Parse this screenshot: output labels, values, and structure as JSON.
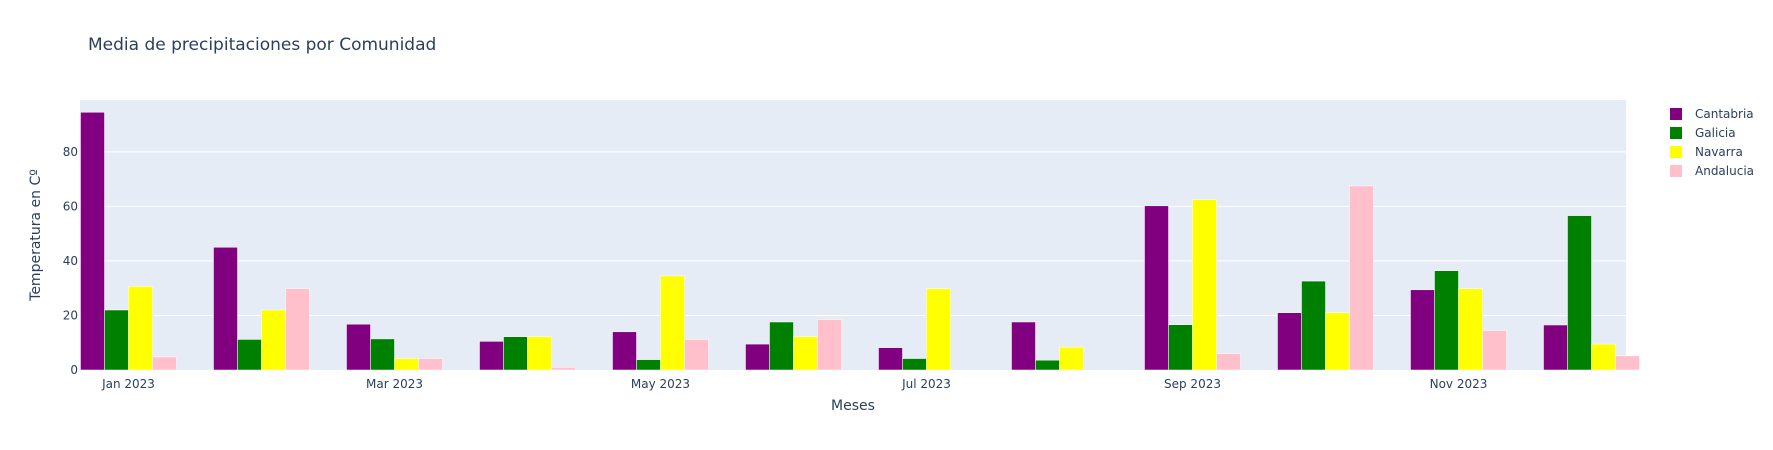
{
  "chart_data": {
    "type": "bar",
    "title": "Media de precipitaciones por Comunidad",
    "xlabel": "Meses",
    "ylabel": "Temperatura en Cº",
    "ylim": [
      0,
      99
    ],
    "yticks": [
      0,
      20,
      40,
      60,
      80
    ],
    "x_tick_labels": [
      {
        "month_index": 0,
        "label": "Jan 2023"
      },
      {
        "month_index": 2,
        "label": "Mar 2023"
      },
      {
        "month_index": 4,
        "label": "May 2023"
      },
      {
        "month_index": 6,
        "label": "Jul 2023"
      },
      {
        "month_index": 8,
        "label": "Sep 2023"
      },
      {
        "month_index": 10,
        "label": "Nov 2023"
      }
    ],
    "categories": [
      "2023-01",
      "2023-02",
      "2023-03",
      "2023-04",
      "2023-05",
      "2023-06",
      "2023-07",
      "2023-08",
      "2023-09",
      "2023-10",
      "2023-11",
      "2023-12"
    ],
    "series": [
      {
        "name": "Cantabria",
        "color": "#800080",
        "values": [
          94.5,
          45,
          16.8,
          10.5,
          14,
          9.5,
          8.2,
          17.6,
          60.2,
          21,
          29.4,
          16.5
        ]
      },
      {
        "name": "Galicia",
        "color": "#008000",
        "values": [
          22,
          11.2,
          11.4,
          12.2,
          3.8,
          17.6,
          4.2,
          3.6,
          16.6,
          32.6,
          36.4,
          56.6
        ]
      },
      {
        "name": "Navarra",
        "color": "#ffff00",
        "values": [
          30.6,
          22,
          4.2,
          12.2,
          34.5,
          12.2,
          29.8,
          8.4,
          62.5,
          21,
          29.8,
          9.5
        ]
      },
      {
        "name": "Andalucia",
        "color": "#ffc0cb",
        "values": [
          4.8,
          29.8,
          4.2,
          1,
          11.2,
          18.5,
          0,
          0,
          6,
          67.5,
          14.5,
          5.2
        ]
      }
    ],
    "grid": true,
    "legend_position": "right"
  }
}
